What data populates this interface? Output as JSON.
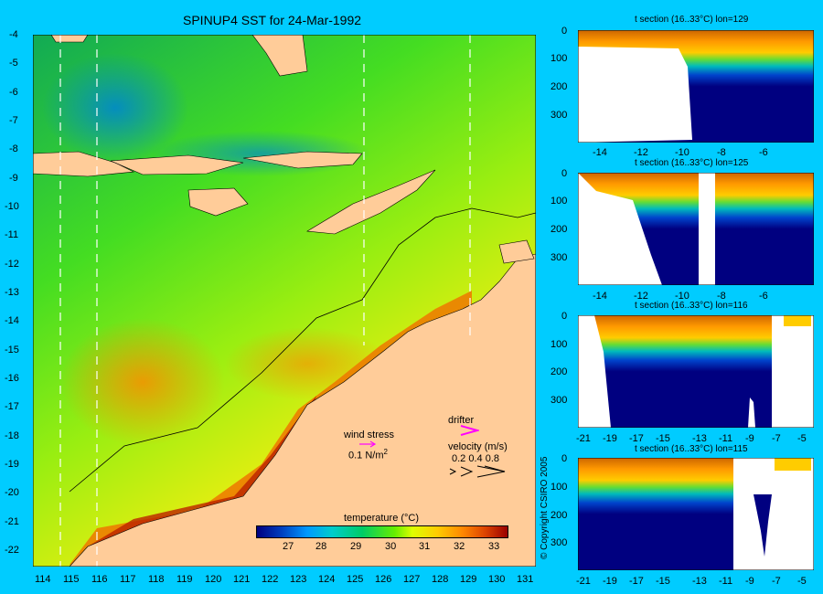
{
  "title": "SPINUP4 SST for 24-Mar-1992",
  "map": {
    "lat_labels": [
      "-4",
      "-5",
      "-6",
      "-7",
      "-8",
      "-9",
      "-10",
      "-11",
      "-12",
      "-13",
      "-14",
      "-15",
      "-16",
      "-17",
      "-18",
      "-19",
      "-20",
      "-21",
      "-22"
    ],
    "lon_labels": [
      "114",
      "115",
      "116",
      "117",
      "118",
      "119",
      "120",
      "121",
      "122",
      "123",
      "124",
      "125",
      "126",
      "127",
      "128",
      "129",
      "130",
      "131"
    ],
    "section_lons": [
      114.6,
      116,
      125.5,
      129.3
    ],
    "colors": {
      "land": "#ffcc99",
      "ocean_base": "#33cc33",
      "warm": "#ff9900",
      "hot": "#aa1100",
      "cool": "#0099cc"
    }
  },
  "legend": {
    "wind_label": "wind stress",
    "wind_value": "0.1 N/m",
    "wind_exp": "2",
    "drifter_label": "drifter",
    "velocity_label": "velocity (m/s)",
    "velocity_values": "0.2 0.4 0.8",
    "colorbar_title": "temperature (°C)",
    "colorbar_ticks": [
      "27",
      "28",
      "29",
      "30",
      "31",
      "32",
      "33"
    ],
    "colorbar_colors": [
      "#000080",
      "#0040c0",
      "#0099ff",
      "#00cccc",
      "#00cc66",
      "#66ee00",
      "#ddff00",
      "#ffcc00",
      "#ff8800",
      "#dd4400",
      "#990000"
    ],
    "drifter_color": "#ff00ff"
  },
  "sections": [
    {
      "title": "t section (16..33°C) lon=129",
      "x_ticks": [
        "-14",
        "-12",
        "-10",
        "-8",
        "-6"
      ],
      "y_ticks": [
        "0",
        "100",
        "200",
        "300"
      ]
    },
    {
      "title": "t section (16..33°C) lon=125",
      "x_ticks": [
        "-14",
        "-12",
        "-10",
        "-8",
        "-6"
      ],
      "y_ticks": [
        "0",
        "100",
        "200",
        "300"
      ]
    },
    {
      "title": "t section (16..33°C) lon=116",
      "x_ticks": [
        "-21",
        "-19",
        "-17",
        "-15",
        "-13",
        "-11",
        "-9",
        "-7",
        "-5"
      ],
      "y_ticks": [
        "0",
        "100",
        "200",
        "300"
      ]
    },
    {
      "title": "t section (16..33°C) lon=115",
      "x_ticks": [
        "-21",
        "-19",
        "-17",
        "-15",
        "-13",
        "-11",
        "-9",
        "-7",
        "-5"
      ],
      "y_ticks": [
        "0",
        "100",
        "200",
        "300"
      ]
    }
  ],
  "copyright": "© Copyright CSIRO 2005"
}
